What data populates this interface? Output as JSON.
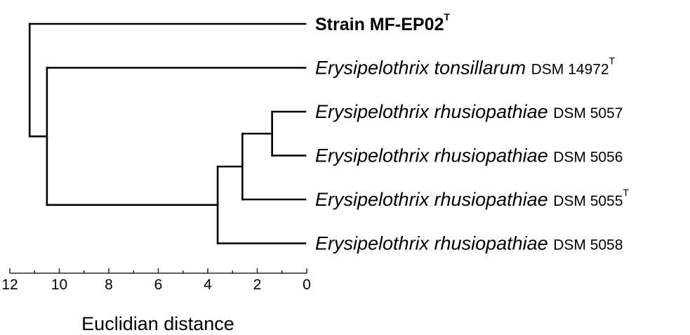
{
  "chart_data": {
    "type": "dendrogram",
    "xlabel": "Euclidian distance",
    "xlim": [
      12,
      0
    ],
    "ticks": [
      12,
      10,
      8,
      6,
      4,
      2,
      0
    ],
    "leaves": [
      {
        "species": "",
        "strain": "Strain MF-EP02",
        "sup": "T",
        "bold": true
      },
      {
        "species": "Erysipelothrix tonsillarum",
        "strain": "DSM 14972",
        "sup": "T",
        "bold": false
      },
      {
        "species": "Erysipelothrix rhusiopathiae",
        "strain": "DSM 5057",
        "sup": "",
        "bold": false
      },
      {
        "species": "Erysipelothrix rhusiopathiae",
        "strain": "DSM 5056",
        "sup": "",
        "bold": false
      },
      {
        "species": "Erysipelothrix rhusiopathiae",
        "strain": "DSM 5055",
        "sup": "T",
        "bold": false
      },
      {
        "species": "Erysipelothrix rhusiopathiae",
        "strain": "DSM 5058",
        "sup": "",
        "bold": false
      }
    ],
    "merges": [
      {
        "a": "L2",
        "b": "L3",
        "height": 1.4
      },
      {
        "a": "M0",
        "b": "L4",
        "height": 2.6
      },
      {
        "a": "M1",
        "b": "L5",
        "height": 3.6
      },
      {
        "a": "L1",
        "b": "M2",
        "height": 10.5
      },
      {
        "a": "L0",
        "b": "M3",
        "height": 11.2
      }
    ]
  }
}
